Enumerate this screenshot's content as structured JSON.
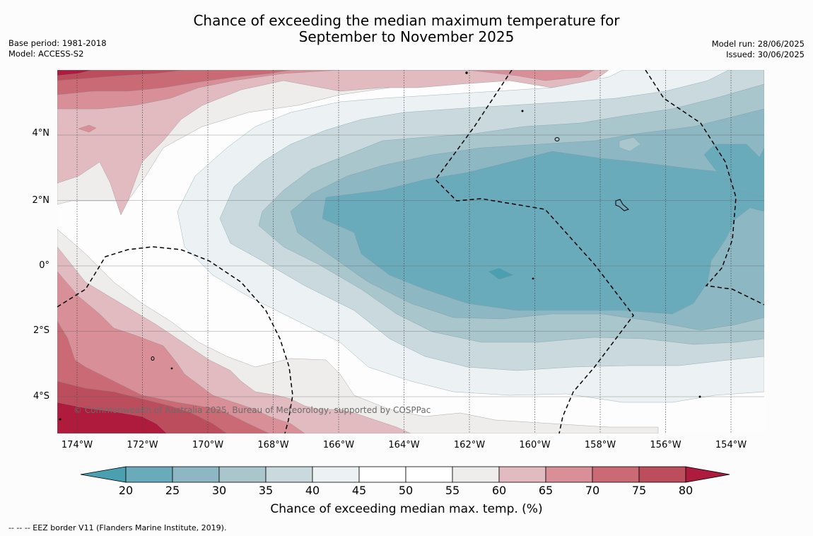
{
  "title_lines": [
    "Chance of exceeding the median maximum temperature for",
    "September to November 2025"
  ],
  "meta_left": [
    "Base period: 1981-2018",
    "Model: ACCESS-S2"
  ],
  "meta_right": [
    "Model run: 28/06/2025",
    "Issued: 30/06/2025"
  ],
  "copyright": "© Commonwealth of Australia 2025, Bureau of Meteorology, supported by COSPPac",
  "footnote": "--  --  -- EEZ border V11 (Flanders Marine Institute, 2019).",
  "map": {
    "lat_labels": [
      "4°N",
      "2°N",
      "0°",
      "2°S",
      "4°S"
    ],
    "lon_labels": [
      "174°W",
      "172°W",
      "170°W",
      "168°W",
      "166°W",
      "164°W",
      "162°W",
      "160°W",
      "158°W",
      "156°W",
      "154°W"
    ]
  },
  "colorbar": {
    "title": "Chance of exceeding median max. temp. (%)",
    "ticks": [
      "20",
      "25",
      "30",
      "35",
      "40",
      "45",
      "50",
      "55",
      "60",
      "65",
      "70",
      "75",
      "80"
    ],
    "colors": [
      "#4a9fb0",
      "#6aabbb",
      "#8db7c3",
      "#a8c6cc",
      "#c9d9dd",
      "#ecf1f3",
      "#ffffff",
      "#ffffff",
      "#efedec",
      "#e2bbc0",
      "#d88f98",
      "#c96a74",
      "#bb4d5d",
      "#ae1b3d"
    ]
  }
}
